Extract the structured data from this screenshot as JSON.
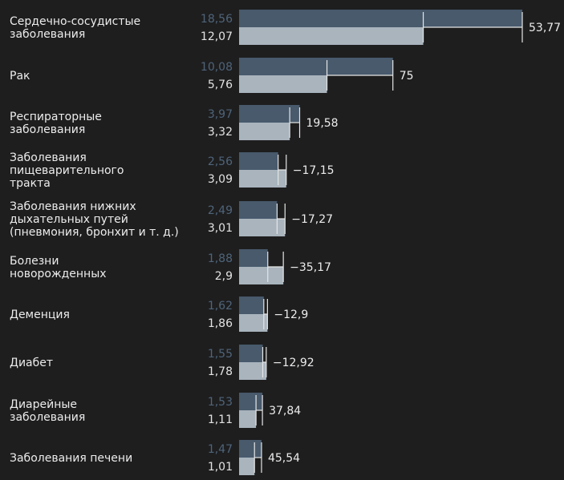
{
  "chart_data": {
    "type": "bar",
    "orientation": "horizontal",
    "categories": [
      [
        "Сердечно-сосудистые",
        "заболевания"
      ],
      [
        "Рак"
      ],
      [
        "Респираторные",
        "заболевания"
      ],
      [
        "Заболевания",
        "пищеварительного",
        "тракта"
      ],
      [
        "Заболевания нижних",
        "дыхательных путей",
        "(пневмония, бронхит и т. д.)"
      ],
      [
        "Болезни",
        "новорожденных"
      ],
      [
        "Деменция"
      ],
      [
        "Диабет"
      ],
      [
        "Диарейные",
        "заболевания"
      ],
      [
        "Заболевания печени"
      ]
    ],
    "series": [
      {
        "values": [
          18.56,
          10.08,
          3.97,
          2.56,
          2.49,
          1.88,
          1.62,
          1.55,
          1.53,
          1.47
        ]
      },
      {
        "values": [
          12.07,
          5.76,
          3.32,
          3.09,
          3.01,
          2.9,
          1.86,
          1.78,
          1.11,
          1.01
        ]
      }
    ],
    "change_labels": [
      "53,77",
      "75",
      "19,58",
      "−17,15",
      "−17,27",
      "−35,17",
      "−12,9",
      "−12,92",
      "37,84",
      "45,54"
    ],
    "value_labels_top": [
      "18,56",
      "10,08",
      "3,97",
      "2,56",
      "2,49",
      "1,88",
      "1,62",
      "1,55",
      "1,53",
      "1,47"
    ],
    "value_labels_bottom": [
      "12,07",
      "5,76",
      "3,32",
      "3,09",
      "3,01",
      "2,9",
      "1,86",
      "1,78",
      "1,11",
      "1,01"
    ],
    "xlim": [
      0,
      18.56
    ],
    "grid": false,
    "colors": {
      "background": "#1e1e1f",
      "series_top": "#485a6c",
      "series_bottom": "#a9b4bd",
      "label_top": "#4f6479",
      "label_bottom": "#e3e3e3",
      "text": "#ececec",
      "bracket": "#e6e6e6"
    }
  }
}
